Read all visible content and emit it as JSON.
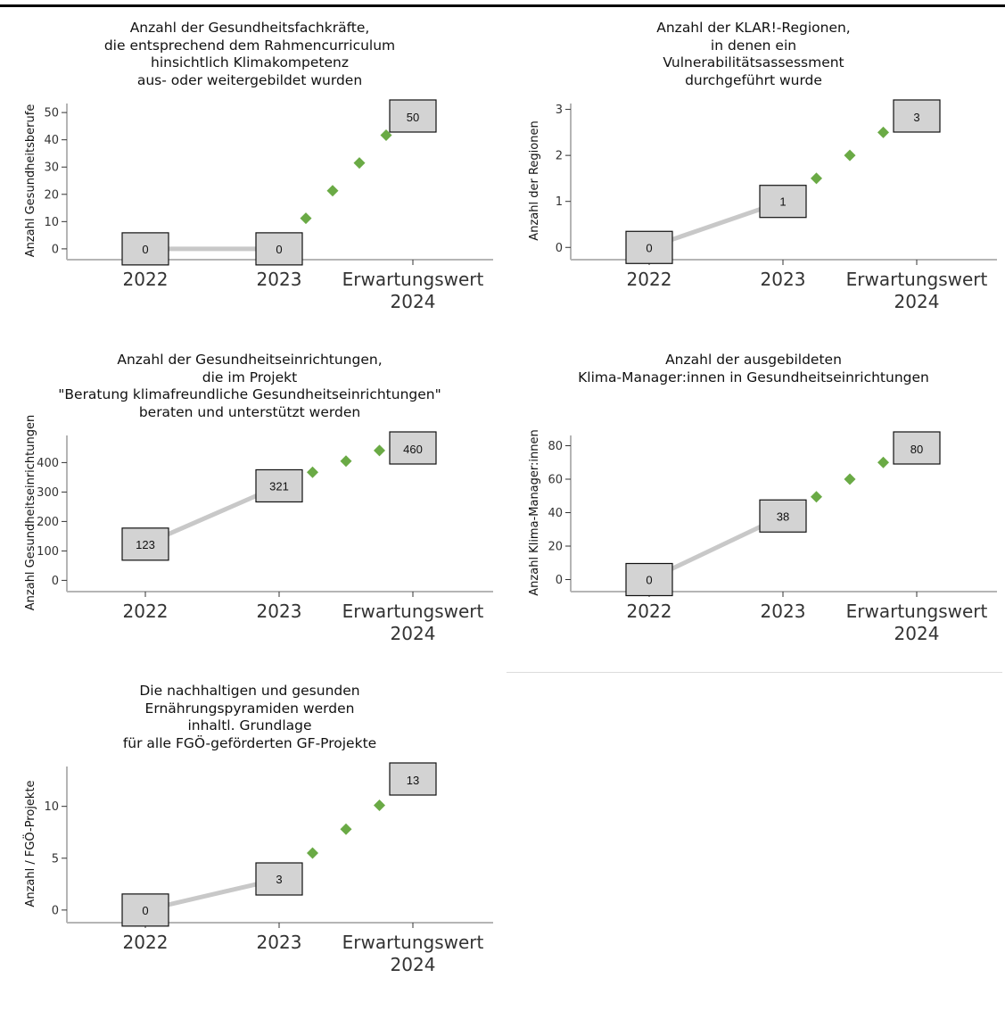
{
  "chart_data": [
    {
      "type": "line",
      "title": "Anzahl der Gesundheitsfachkräfte,\ndie entsprechend dem Rahmencurriculum\nhinsichtlich Klimakompetenz\naus- oder weitergebildet wurden",
      "ylabel": "Anzahl Gesundheitsberufe",
      "categories": [
        "2022",
        "2023",
        "Erwartungswert\n2024"
      ],
      "values": [
        0,
        0,
        50
      ],
      "ticks": [
        0,
        10,
        20,
        30,
        40,
        50
      ],
      "ylim": [
        -2,
        52
      ],
      "dots": [
        11.2,
        21.3,
        31.5,
        41.7
      ],
      "value_labels": [
        "0",
        "0",
        "50"
      ],
      "colors": {
        "actual_line": "#c8c8c8",
        "projection": "#6aaa45",
        "box_fill": "#d3d3d3"
      }
    },
    {
      "type": "line",
      "title": "Anzahl der KLAR!-Regionen,\nin denen ein\nVulnerabilitätsassessment\ndurchgeführt wurde",
      "ylabel": "Anzahl der Regionen",
      "categories": [
        "2022",
        "2023",
        "Erwartungswert\n2024"
      ],
      "values": [
        0,
        1,
        3
      ],
      "ticks": [
        0,
        1,
        2,
        3
      ],
      "ylim": [
        -0.15,
        3.05
      ],
      "dots": [
        1.5,
        2.0,
        2.5
      ],
      "value_labels": [
        "0",
        "1",
        "3"
      ],
      "colors": {
        "actual_line": "#c8c8c8",
        "projection": "#6aaa45",
        "box_fill": "#d3d3d3"
      }
    },
    {
      "type": "line",
      "title": "Anzahl der Gesundheitseinrichtungen,\ndie im Projekt\n\"Beratung klimafreundliche Gesundheitseinrichtungen\"\nberaten und unterstützt werden",
      "ylabel": "Anzahl Gesundheitseinrichtungen",
      "categories": [
        "2022",
        "2023",
        "Erwartungswert\n2024"
      ],
      "values": [
        123,
        321,
        460
      ],
      "ticks": [
        0,
        100,
        200,
        300,
        400
      ],
      "ylim": [
        -20,
        480
      ],
      "dots": [
        367,
        405,
        441
      ],
      "value_labels": [
        "123",
        "321",
        "460"
      ],
      "colors": {
        "actual_line": "#c8c8c8",
        "projection": "#6aaa45",
        "box_fill": "#d3d3d3"
      }
    },
    {
      "type": "line",
      "title": "Anzahl der ausgebildeten\nKlima-Manager:innen in Gesundheitseinrichtungen",
      "ylabel": "Anzahl Klima-Manager:innen",
      "categories": [
        "2022",
        "2023",
        "Erwartungswert\n2024"
      ],
      "values": [
        0,
        38,
        80
      ],
      "ticks": [
        0,
        20,
        40,
        60,
        80
      ],
      "ylim": [
        -4,
        84
      ],
      "dots": [
        49.5,
        60,
        70
      ],
      "value_labels": [
        "0",
        "38",
        "80"
      ],
      "colors": {
        "actual_line": "#c8c8c8",
        "projection": "#6aaa45",
        "box_fill": "#d3d3d3"
      }
    },
    {
      "type": "line",
      "title": "Die nachhaltigen und gesunden\nErnährungspyramiden werden\ninhaltl. Grundlage\nfür alle FGÖ-geförderten GF-Projekte",
      "ylabel": "Anzahl / FGÖ-Projekte",
      "categories": [
        "2022",
        "2023",
        "Erwartungswert\n2024"
      ],
      "values": [
        0,
        3,
        13
      ],
      "ticks": [
        0,
        5,
        10
      ],
      "ylim": [
        -0.7,
        13.5
      ],
      "dots": [
        5.5,
        7.8,
        10.1
      ],
      "value_labels": [
        "0",
        "3",
        "13"
      ],
      "colors": {
        "actual_line": "#c8c8c8",
        "projection": "#6aaa45",
        "box_fill": "#d3d3d3"
      }
    }
  ]
}
